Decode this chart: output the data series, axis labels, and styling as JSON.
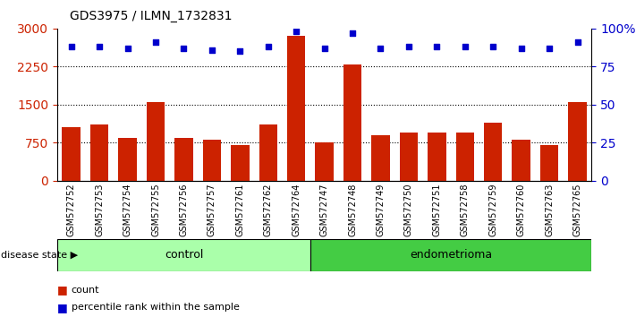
{
  "title": "GDS3975 / ILMN_1732831",
  "samples": [
    "GSM572752",
    "GSM572753",
    "GSM572754",
    "GSM572755",
    "GSM572756",
    "GSM572757",
    "GSM572761",
    "GSM572762",
    "GSM572764",
    "GSM572747",
    "GSM572748",
    "GSM572749",
    "GSM572750",
    "GSM572751",
    "GSM572758",
    "GSM572759",
    "GSM572760",
    "GSM572763",
    "GSM572765"
  ],
  "counts": [
    1050,
    1100,
    850,
    1550,
    850,
    800,
    700,
    1100,
    2850,
    750,
    2300,
    900,
    950,
    950,
    950,
    1150,
    800,
    700,
    1550
  ],
  "percentiles": [
    88,
    88,
    87,
    91,
    87,
    86,
    85,
    88,
    98,
    87,
    97,
    87,
    88,
    88,
    88,
    88,
    87,
    87,
    91
  ],
  "control_count": 9,
  "endometrioma_count": 10,
  "ylim_left": [
    0,
    3000
  ],
  "ylim_right": [
    0,
    100
  ],
  "yticks_left": [
    0,
    750,
    1500,
    2250,
    3000
  ],
  "yticks_right": [
    0,
    25,
    50,
    75,
    100
  ],
  "ytick_labels_right": [
    "0",
    "25",
    "50",
    "75",
    "100%"
  ],
  "bar_color": "#cc2200",
  "dot_color": "#0000cc",
  "control_bg": "#aaffaa",
  "endometrioma_bg": "#44cc44",
  "sample_label_bg": "#cccccc",
  "dotted_line_color": "#000000",
  "legend_count_label": "count",
  "legend_pct_label": "percentile rank within the sample",
  "disease_state_label": "disease state",
  "control_label": "control",
  "endometrioma_label": "endometrioma"
}
